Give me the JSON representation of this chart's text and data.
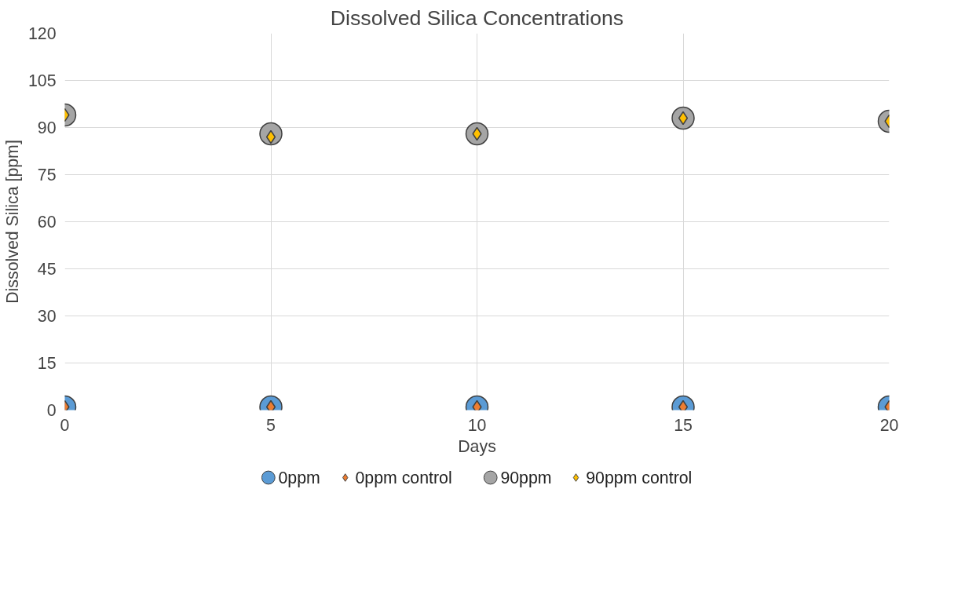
{
  "chart_data": {
    "type": "scatter",
    "title": "Dissolved Silica Concentrations",
    "xlabel": "Days",
    "ylabel": "Dissolved Silica [ppm]",
    "x": [
      0,
      5,
      10,
      15,
      20
    ],
    "series": [
      {
        "name": "0ppm",
        "color": "#5b9bd5",
        "marker": "circle",
        "values": [
          1,
          1,
          1,
          1,
          1
        ]
      },
      {
        "name": "0ppm control",
        "color": "#ed7d31",
        "marker": "diamond",
        "values": [
          1,
          1,
          1,
          1,
          1
        ]
      },
      {
        "name": "90ppm",
        "color": "#a5a5a5",
        "marker": "circle",
        "values": [
          94,
          88,
          88,
          93,
          92
        ]
      },
      {
        "name": "90ppm control",
        "color": "#ffc000",
        "marker": "diamond",
        "values": [
          94,
          87,
          88,
          93,
          92
        ]
      }
    ],
    "xlim": [
      0,
      20
    ],
    "xticks": [
      0,
      5,
      10,
      15,
      20
    ],
    "ylim": [
      0,
      120
    ],
    "yticks": [
      0,
      15,
      30,
      45,
      60,
      75,
      90,
      105,
      120
    ],
    "grid": true,
    "legend": "bottom"
  }
}
